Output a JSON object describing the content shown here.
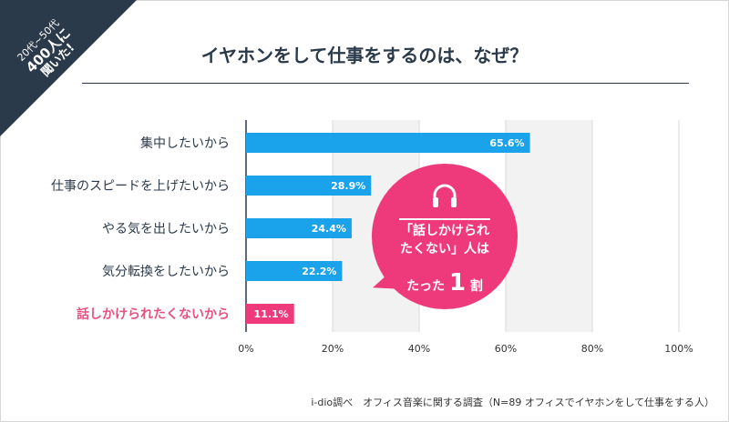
{
  "corner_badge": {
    "line1": "20代~50代",
    "line2": "400人に",
    "line3": "聞いた!"
  },
  "title": "イヤホンをして仕事をするのは、なぜ？",
  "chart_data": {
    "type": "bar",
    "orientation": "horizontal",
    "categories": [
      "集中したいから",
      "仕事のスピードを上げたいから",
      "やる気を出したいから",
      "気分転換をしたいから",
      "話しかけられたくないから"
    ],
    "values": [
      65.6,
      28.9,
      24.4,
      22.2,
      11.1
    ],
    "value_labels": [
      "65.6%",
      "28.9%",
      "24.4%",
      "22.2%",
      "11.1%"
    ],
    "xlim": [
      0,
      100
    ],
    "x_ticks": [
      "0%",
      "20%",
      "40%",
      "60%",
      "80%",
      "100%"
    ],
    "grid": true,
    "colors": {
      "bar": "#1aa3ea",
      "highlight": "#ee3a7a",
      "highlight_label": "#e8517f",
      "label": "#2b3a4a"
    },
    "highlight_index": 4
  },
  "callout": {
    "line1": "「話しかけられ",
    "line2": "たくない」人は",
    "prefix": "たった",
    "number": "1",
    "suffix": "割",
    "icon": "headphones-icon"
  },
  "footer": "i-dio調べ　オフィス音楽に関する調査（N=89 オフィスでイヤホンをして仕事をする人）"
}
